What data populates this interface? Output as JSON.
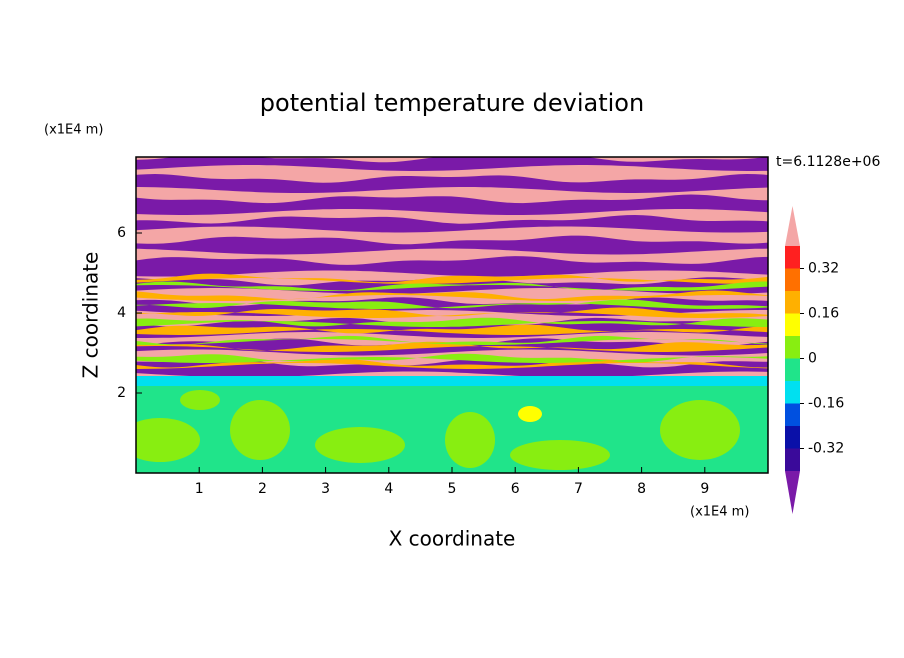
{
  "chart_data": {
    "type": "contour",
    "title": "potential temperature deviation",
    "x_label": "X coordinate",
    "y_label": "Z coordinate",
    "x_unit": "(x1E4 m)",
    "y_unit": "(x1E4 m)",
    "time_label": "t=6.1128e+06",
    "xlim": [
      0,
      10
    ],
    "ylim": [
      0,
      7.9
    ],
    "xticks": [
      1,
      2,
      3,
      4,
      5,
      6,
      7,
      8,
      9
    ],
    "yticks": [
      2,
      4,
      6
    ],
    "colorbar": {
      "levels": [
        -0.4,
        -0.32,
        -0.24,
        -0.16,
        -0.08,
        0,
        0.08,
        0.16,
        0.24,
        0.32,
        0.4
      ],
      "colors": [
        "#7a1aa8",
        "#3a0a9a",
        "#0a10a8",
        "#0050e0",
        "#00e0f0",
        "#20e48a",
        "#88ee11",
        "#ffff00",
        "#ffb000",
        "#ff7000",
        "#ff2020",
        "#f4a6a6"
      ],
      "ticks": [
        -0.32,
        -0.16,
        0,
        0.16,
        0.32
      ]
    }
  }
}
